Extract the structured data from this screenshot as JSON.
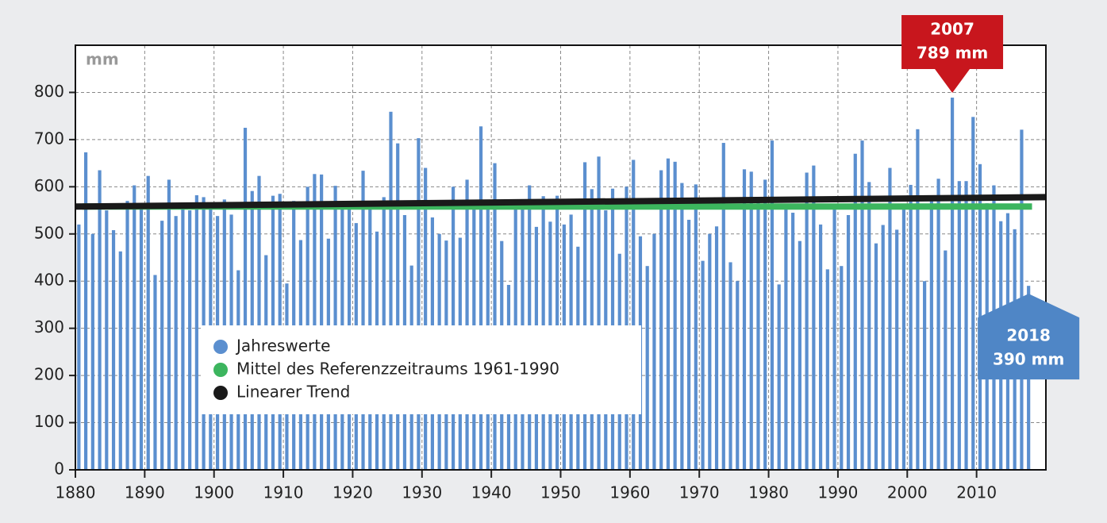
{
  "chart_data": {
    "type": "bar",
    "y_label": "mm",
    "x": [
      1881,
      1882,
      1883,
      1884,
      1885,
      1886,
      1887,
      1888,
      1889,
      1890,
      1891,
      1892,
      1893,
      1894,
      1895,
      1896,
      1897,
      1898,
      1899,
      1900,
      1901,
      1902,
      1903,
      1904,
      1905,
      1906,
      1907,
      1908,
      1909,
      1910,
      1911,
      1912,
      1913,
      1914,
      1915,
      1916,
      1917,
      1918,
      1919,
      1920,
      1921,
      1922,
      1923,
      1924,
      1925,
      1926,
      1927,
      1928,
      1929,
      1930,
      1931,
      1932,
      1933,
      1934,
      1935,
      1936,
      1937,
      1938,
      1939,
      1940,
      1941,
      1942,
      1943,
      1944,
      1945,
      1946,
      1947,
      1948,
      1949,
      1950,
      1951,
      1952,
      1953,
      1954,
      1955,
      1956,
      1957,
      1958,
      1959,
      1960,
      1961,
      1962,
      1963,
      1964,
      1965,
      1966,
      1967,
      1968,
      1969,
      1970,
      1971,
      1972,
      1973,
      1974,
      1975,
      1976,
      1977,
      1978,
      1979,
      1980,
      1981,
      1982,
      1983,
      1984,
      1985,
      1986,
      1987,
      1988,
      1989,
      1990,
      1991,
      1992,
      1993,
      1994,
      1995,
      1996,
      1997,
      1998,
      1999,
      2000,
      2001,
      2002,
      2003,
      2004,
      2005,
      2006,
      2007,
      2008,
      2009,
      2010,
      2011,
      2012,
      2013,
      2014,
      2015,
      2016,
      2017,
      2018
    ],
    "series": [
      {
        "name": "Jahreswerte",
        "color": "#5b8fcf",
        "values": [
          520,
          673,
          500,
          635,
          550,
          508,
          463,
          570,
          603,
          565,
          623,
          413,
          528,
          615,
          538,
          565,
          550,
          582,
          578,
          558,
          538,
          573,
          541,
          423,
          725,
          591,
          623,
          455,
          581,
          585,
          395,
          570,
          487,
          600,
          627,
          626,
          490,
          602,
          555,
          560,
          523,
          634,
          565,
          505,
          578,
          759,
          692,
          540,
          433,
          703,
          640,
          535,
          500,
          486,
          600,
          492,
          615,
          560,
          728,
          565,
          650,
          485,
          392,
          555,
          560,
          603,
          515,
          580,
          526,
          581,
          520,
          541,
          473,
          652,
          595,
          664,
          550,
          596,
          458,
          600,
          657,
          495,
          432,
          500,
          635,
          660,
          653,
          608,
          530,
          605,
          443,
          500,
          516,
          693,
          440,
          400,
          637,
          632,
          578,
          615,
          698,
          393,
          555,
          545,
          485,
          630,
          645,
          520,
          425,
          560,
          432,
          540,
          670,
          698,
          610,
          480,
          519,
          640,
          509,
          560,
          604,
          722,
          400,
          580,
          617,
          465,
          789,
          612,
          612,
          748,
          648,
          565,
          603,
          527,
          544,
          510,
          721,
          390
        ]
      },
      {
        "name": "Mittel des Referenzzeitraums 1961-1990",
        "type": "line",
        "color": "#3cb55e",
        "x": [
          1881,
          2018
        ],
        "values": [
          558,
          558
        ]
      },
      {
        "name": "Linearer Trend",
        "type": "line",
        "color": "#1a1a1a",
        "x": [
          1880,
          2020
        ],
        "values": [
          558,
          578
        ]
      }
    ],
    "annotations": [
      {
        "x": 2007,
        "value": 789,
        "value_label": "789 mm",
        "color": "#c8161d"
      },
      {
        "x": 2018,
        "value": 390,
        "value_label": "390 mm",
        "color": "#4f86c6"
      }
    ],
    "xlim": [
      1880,
      2020
    ],
    "xticks": [
      1880,
      1890,
      1900,
      1910,
      1920,
      1930,
      1940,
      1950,
      1960,
      1970,
      1980,
      1990,
      2000,
      2010
    ],
    "ylim": [
      0,
      900
    ],
    "yticks": [
      0,
      100,
      200,
      300,
      400,
      500,
      600,
      700,
      800
    ],
    "grid": true
  }
}
